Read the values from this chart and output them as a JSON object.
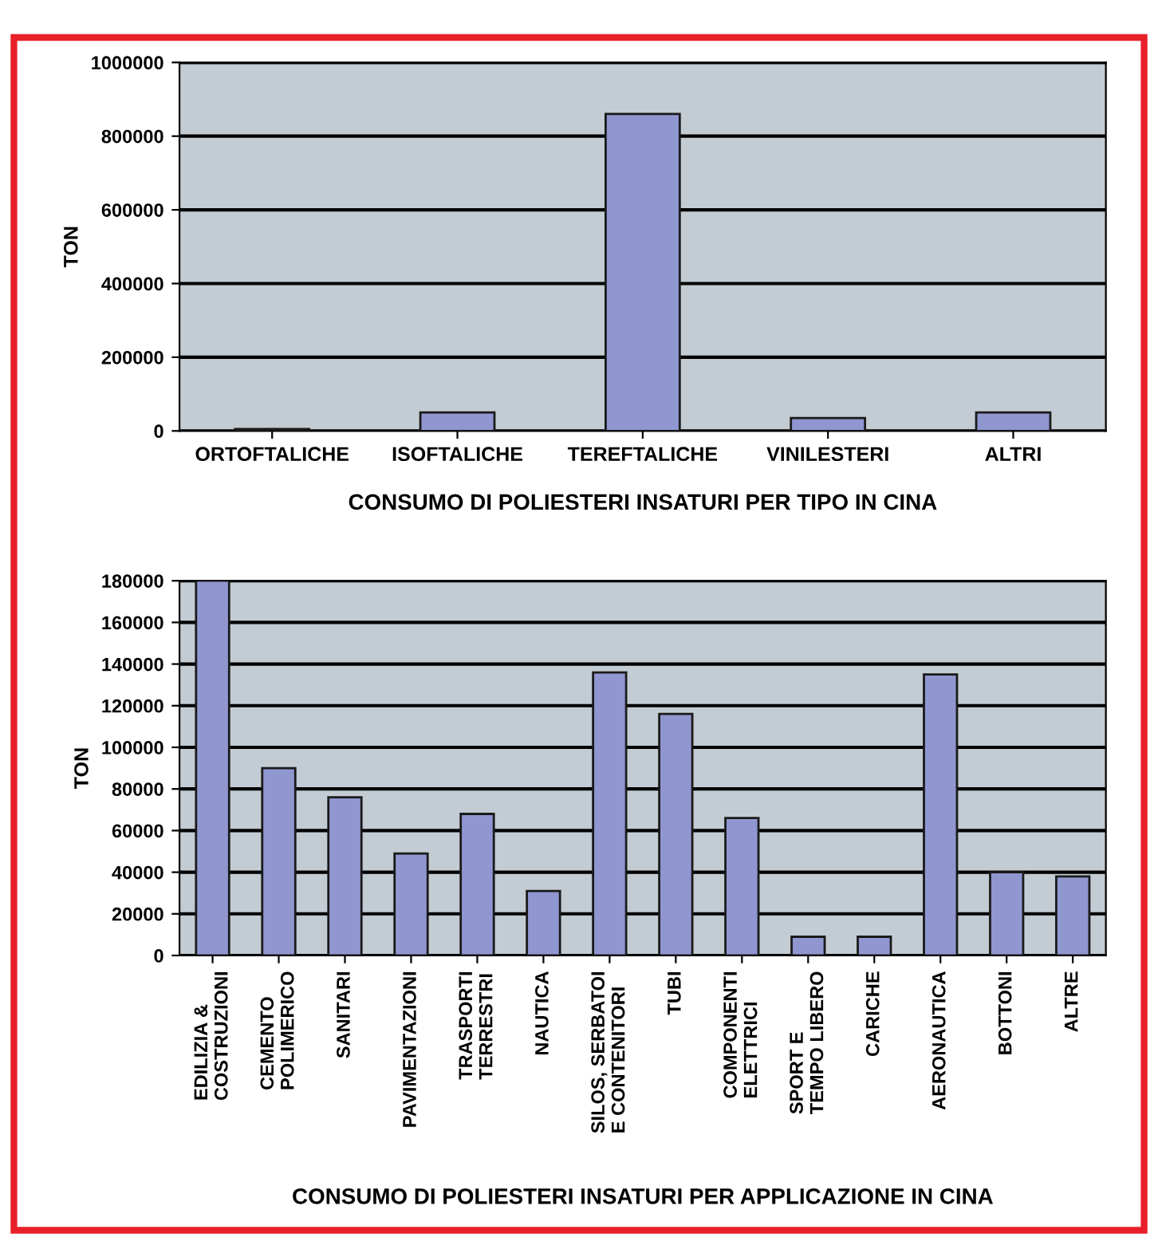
{
  "chart_data": [
    {
      "type": "bar",
      "title": "CONSUMO DI POLIESTERI INSATURI PER TIPO IN CINA",
      "ylabel": "TON",
      "categories": [
        "ORTOFTALICHE",
        "ISOFTALICHE",
        "TEREFTALICHE",
        "VINILESTERI",
        "ALTRI"
      ],
      "values": [
        5000,
        50000,
        860000,
        35000,
        50000
      ],
      "color": "#8f96d0",
      "ylim": [
        0,
        1000000
      ],
      "yticks": [
        0,
        200000,
        400000,
        600000,
        800000,
        1000000
      ],
      "grid": "y"
    },
    {
      "type": "bar",
      "title": "CONSUMO DI POLIESTERI INSATURI PER APPLICAZIONE IN CINA",
      "ylabel": "TON",
      "categories": [
        "EDILIZIA &\nCOSTRUZIONI",
        "CEMENTO\nPOLIMERICO",
        "SANITARI",
        "PAVIMENTAZIONI",
        "TRASPORTI\nTERRESTRI",
        "NAUTICA",
        "SILOS, SERBATOI\nE CONTENITORI",
        "TUBI",
        "COMPONENTI\nELETTRICI",
        "SPORT E\nTEMPO LIBERO",
        "CARICHE",
        "AERONAUTICA",
        "BOTTONI",
        "ALTRE"
      ],
      "values": [
        180000,
        90000,
        76000,
        49000,
        68000,
        31000,
        136000,
        116000,
        66000,
        9000,
        9000,
        135000,
        40000,
        38000
      ],
      "color": "#8f96d0",
      "ylim": [
        0,
        180000
      ],
      "yticks": [
        0,
        20000,
        40000,
        60000,
        80000,
        100000,
        120000,
        140000,
        160000,
        180000
      ],
      "grid": "y"
    }
  ]
}
